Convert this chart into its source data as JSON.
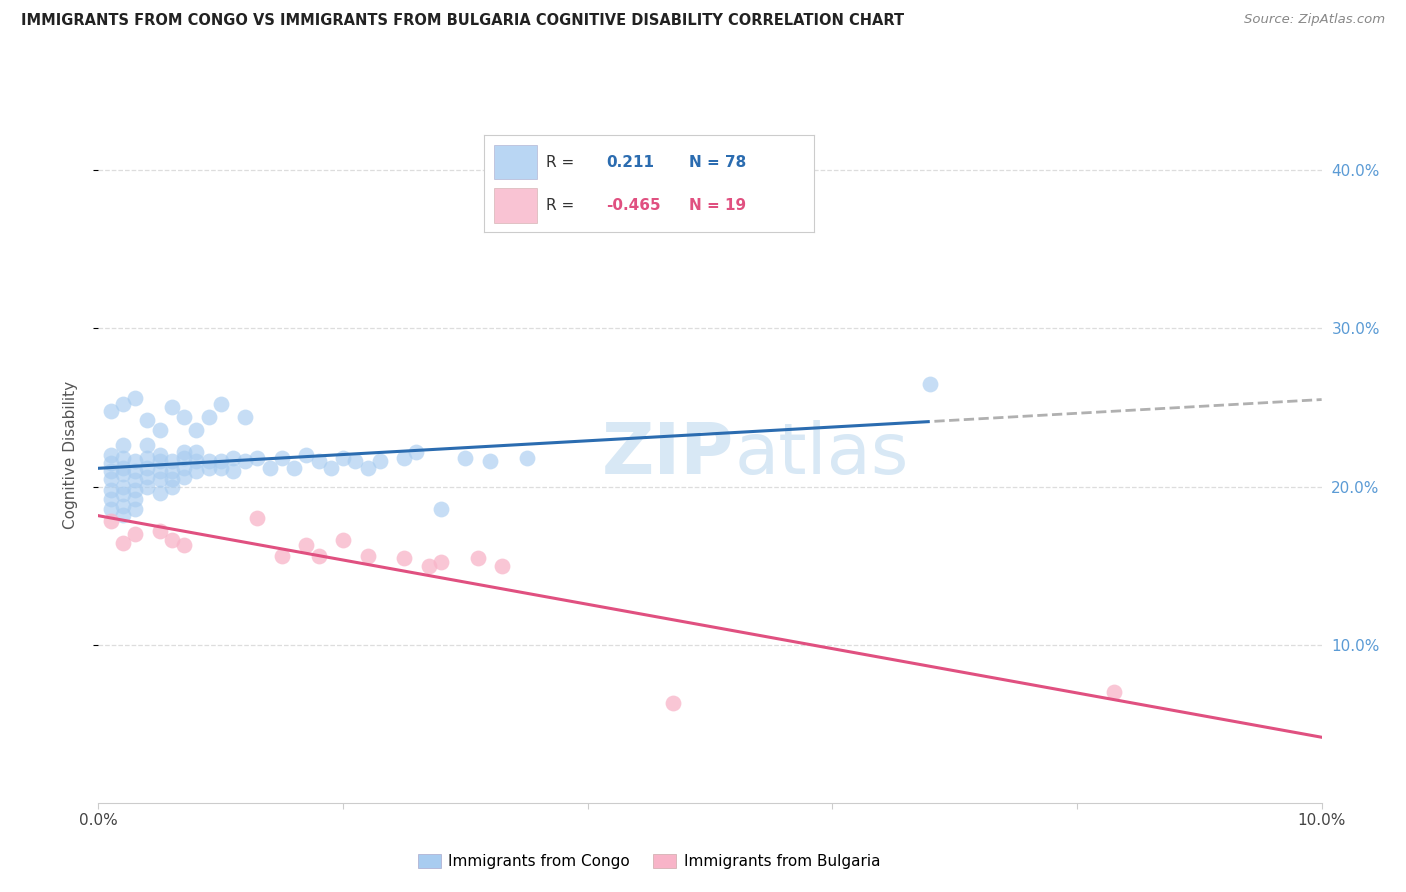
{
  "title": "IMMIGRANTS FROM CONGO VS IMMIGRANTS FROM BULGARIA COGNITIVE DISABILITY CORRELATION CHART",
  "source": "Source: ZipAtlas.com",
  "ylabel": "Cognitive Disability",
  "xlim": [
    0.0,
    0.1
  ],
  "ylim": [
    0.0,
    0.44
  ],
  "yticks": [
    0.1,
    0.2,
    0.3,
    0.4
  ],
  "ytick_labels": [
    "10.0%",
    "20.0%",
    "30.0%",
    "40.0%"
  ],
  "xtick_positions": [
    0.0,
    0.02,
    0.04,
    0.06,
    0.08,
    0.1
  ],
  "xtick_labels": [
    "0.0%",
    "",
    "",
    "",
    "",
    "10.0%"
  ],
  "congo_R": 0.211,
  "congo_N": 78,
  "bulgaria_R": -0.465,
  "bulgaria_N": 19,
  "congo_color": "#A8CCF0",
  "bulgaria_color": "#F8B4C8",
  "congo_line_color": "#2B6CB0",
  "bulgaria_line_color": "#E05080",
  "trend_dashed_color": "#B0B0B0",
  "background_color": "#FFFFFF",
  "grid_color": "#DDDDDD",
  "watermark_color": "#D8E8F5",
  "congo_x": [
    0.001,
    0.001,
    0.001,
    0.001,
    0.001,
    0.001,
    0.001,
    0.002,
    0.002,
    0.002,
    0.002,
    0.002,
    0.002,
    0.002,
    0.002,
    0.003,
    0.003,
    0.003,
    0.003,
    0.003,
    0.003,
    0.004,
    0.004,
    0.004,
    0.004,
    0.004,
    0.005,
    0.005,
    0.005,
    0.005,
    0.005,
    0.006,
    0.006,
    0.006,
    0.006,
    0.007,
    0.007,
    0.007,
    0.007,
    0.008,
    0.008,
    0.008,
    0.009,
    0.009,
    0.01,
    0.01,
    0.011,
    0.011,
    0.012,
    0.013,
    0.014,
    0.015,
    0.016,
    0.017,
    0.018,
    0.019,
    0.02,
    0.021,
    0.022,
    0.023,
    0.025,
    0.026,
    0.028,
    0.03,
    0.032,
    0.035,
    0.068,
    0.001,
    0.002,
    0.003,
    0.004,
    0.005,
    0.006,
    0.007,
    0.008,
    0.009,
    0.01,
    0.012
  ],
  "congo_y": [
    0.215,
    0.21,
    0.22,
    0.205,
    0.198,
    0.192,
    0.186,
    0.218,
    0.212,
    0.208,
    0.2,
    0.195,
    0.226,
    0.188,
    0.182,
    0.216,
    0.21,
    0.204,
    0.198,
    0.192,
    0.186,
    0.218,
    0.212,
    0.206,
    0.2,
    0.226,
    0.216,
    0.21,
    0.205,
    0.22,
    0.196,
    0.216,
    0.21,
    0.205,
    0.2,
    0.218,
    0.212,
    0.206,
    0.222,
    0.216,
    0.21,
    0.222,
    0.216,
    0.212,
    0.216,
    0.212,
    0.218,
    0.21,
    0.216,
    0.218,
    0.212,
    0.218,
    0.212,
    0.22,
    0.216,
    0.212,
    0.218,
    0.216,
    0.212,
    0.216,
    0.218,
    0.222,
    0.186,
    0.218,
    0.216,
    0.218,
    0.265,
    0.248,
    0.252,
    0.256,
    0.242,
    0.236,
    0.25,
    0.244,
    0.236,
    0.244,
    0.252,
    0.244
  ],
  "bulgaria_x": [
    0.001,
    0.002,
    0.003,
    0.005,
    0.006,
    0.007,
    0.013,
    0.015,
    0.017,
    0.018,
    0.02,
    0.022,
    0.025,
    0.027,
    0.028,
    0.031,
    0.033,
    0.047,
    0.083
  ],
  "bulgaria_y": [
    0.178,
    0.164,
    0.17,
    0.172,
    0.166,
    0.163,
    0.18,
    0.156,
    0.163,
    0.156,
    0.166,
    0.156,
    0.155,
    0.15,
    0.152,
    0.155,
    0.15,
    0.063,
    0.07
  ],
  "congo_line_x0": 0.0,
  "congo_line_x_solid_end": 0.068,
  "congo_line_x1": 0.1,
  "bulgaria_line_x0": 0.0,
  "bulgaria_line_x1": 0.1
}
